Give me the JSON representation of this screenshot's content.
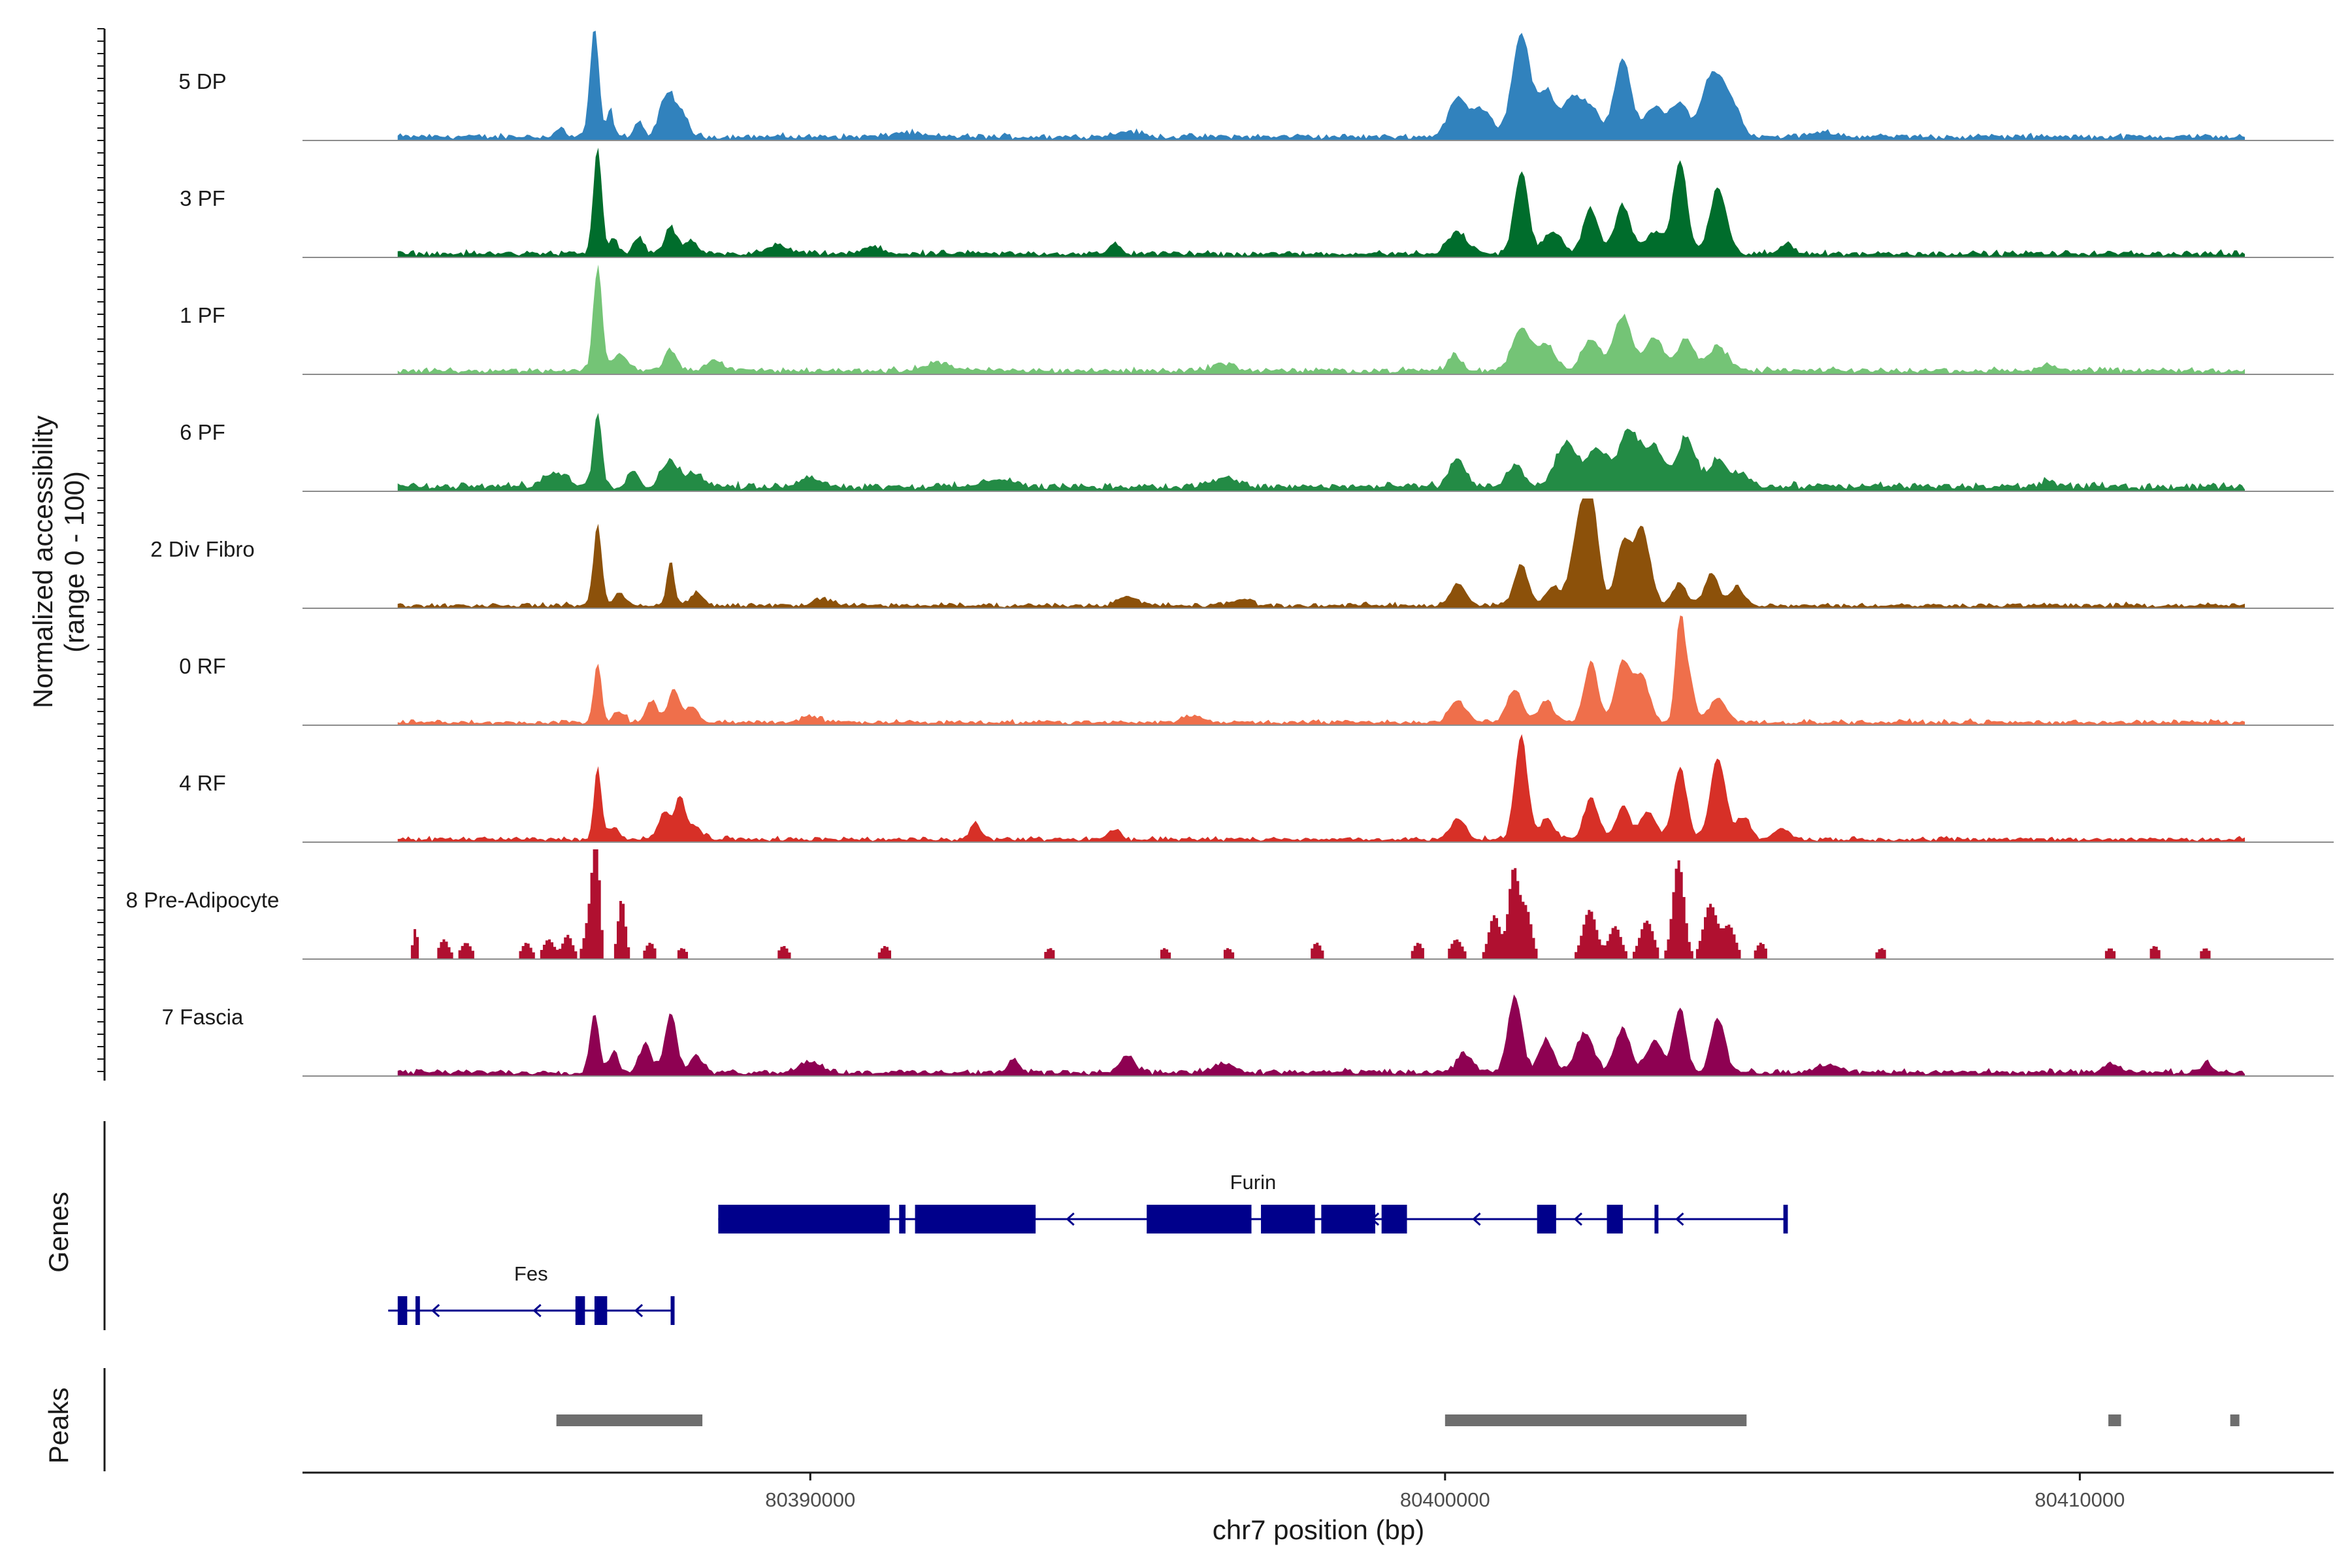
{
  "chart_data": {
    "type": "area",
    "title": "",
    "ylabel_line1": "Normalized accessibility",
    "ylabel_line2": "(range 0 - 100)",
    "xlabel": "chr7 position (bp)",
    "xlim": [
      80382000,
      80414000
    ],
    "xticks": [
      80390000,
      80400000,
      80410000
    ],
    "xtick_labels": [
      "80390000",
      "80400000",
      "80410000"
    ],
    "ylim": [
      0,
      100
    ],
    "series": [
      {
        "name": "5 DP",
        "color": "#3182bd",
        "baseline": 4,
        "noise": 3,
        "peaks": [
          [
            80386000,
            6,
            40
          ],
          [
            80386100,
            8,
            35
          ],
          [
            80386600,
            100,
            70
          ],
          [
            80386850,
            25,
            50
          ],
          [
            80387300,
            15,
            70
          ],
          [
            80387650,
            22,
            70
          ],
          [
            80387800,
            38,
            80
          ],
          [
            80388000,
            20,
            90
          ],
          [
            80391500,
            4,
            200
          ],
          [
            80395000,
            5,
            200
          ],
          [
            80400200,
            35,
            150
          ],
          [
            80400600,
            25,
            150
          ],
          [
            80401200,
            95,
            140
          ],
          [
            80401600,
            40,
            130
          ],
          [
            80402000,
            35,
            150
          ],
          [
            80402300,
            25,
            140
          ],
          [
            80402800,
            70,
            130
          ],
          [
            80403300,
            28,
            150
          ],
          [
            80403700,
            30,
            130
          ],
          [
            80404200,
            55,
            160
          ],
          [
            80404500,
            30,
            150
          ],
          [
            80406000,
            4,
            200
          ]
        ]
      },
      {
        "name": "3 PF",
        "color": "#006d2c",
        "baseline": 4,
        "noise": 3,
        "peaks": [
          [
            80386650,
            100,
            65
          ],
          [
            80386900,
            15,
            60
          ],
          [
            80387300,
            15,
            80
          ],
          [
            80387800,
            25,
            90
          ],
          [
            80388100,
            12,
            90
          ],
          [
            80389500,
            8,
            150
          ],
          [
            80391000,
            6,
            150
          ],
          [
            80394800,
            10,
            80
          ],
          [
            80400200,
            20,
            150
          ],
          [
            80401200,
            75,
            110
          ],
          [
            80401700,
            20,
            140
          ],
          [
            80402300,
            40,
            120
          ],
          [
            80402800,
            45,
            120
          ],
          [
            80403300,
            20,
            140
          ],
          [
            80403700,
            85,
            110
          ],
          [
            80404300,
            60,
            130
          ],
          [
            80405400,
            10,
            100
          ]
        ]
      },
      {
        "name": "1 PF",
        "color": "#74c476",
        "baseline": 4,
        "noise": 3,
        "peaks": [
          [
            80386650,
            95,
            70
          ],
          [
            80387000,
            15,
            120
          ],
          [
            80387800,
            20,
            90
          ],
          [
            80388500,
            8,
            150
          ],
          [
            80392000,
            8,
            200
          ],
          [
            80396500,
            6,
            200
          ],
          [
            80400150,
            15,
            100
          ],
          [
            80401200,
            40,
            140
          ],
          [
            80401600,
            25,
            140
          ],
          [
            80402300,
            30,
            140
          ],
          [
            80402800,
            50,
            140
          ],
          [
            80403300,
            30,
            140
          ],
          [
            80403800,
            30,
            130
          ],
          [
            80404300,
            22,
            150
          ],
          [
            80409500,
            6,
            100
          ]
        ]
      },
      {
        "name": "6 PF",
        "color": "#238b45",
        "baseline": 5,
        "noise": 4,
        "peaks": [
          [
            80386000,
            12,
            200
          ],
          [
            80386650,
            70,
            65
          ],
          [
            80387200,
            15,
            90
          ],
          [
            80387800,
            25,
            130
          ],
          [
            80388200,
            12,
            130
          ],
          [
            80390000,
            8,
            200
          ],
          [
            80393000,
            8,
            200
          ],
          [
            80396500,
            8,
            200
          ],
          [
            80400200,
            25,
            130
          ],
          [
            80401100,
            20,
            120
          ],
          [
            80401900,
            40,
            160
          ],
          [
            80402400,
            35,
            160
          ],
          [
            80402900,
            50,
            160
          ],
          [
            80403300,
            35,
            150
          ],
          [
            80403800,
            45,
            140
          ],
          [
            80404300,
            25,
            150
          ],
          [
            80404700,
            12,
            120
          ],
          [
            80409500,
            6,
            120
          ]
        ]
      },
      {
        "name": "2 Div Fibro",
        "color": "#8c510a",
        "baseline": 3,
        "noise": 3,
        "peaks": [
          [
            80386650,
            75,
            65
          ],
          [
            80387000,
            12,
            80
          ],
          [
            80387800,
            40,
            60
          ],
          [
            80388200,
            12,
            100
          ],
          [
            80390200,
            6,
            150
          ],
          [
            80395000,
            8,
            150
          ],
          [
            80396800,
            6,
            150
          ],
          [
            80400200,
            20,
            120
          ],
          [
            80401200,
            38,
            110
          ],
          [
            80401700,
            18,
            100
          ],
          [
            80402100,
            60,
            130
          ],
          [
            80402300,
            90,
            120
          ],
          [
            80402800,
            55,
            110
          ],
          [
            80403100,
            70,
            130
          ],
          [
            80403700,
            20,
            110
          ],
          [
            80404200,
            30,
            110
          ],
          [
            80404600,
            18,
            100
          ]
        ]
      },
      {
        "name": "0 RF",
        "color": "#ef6f4b",
        "baseline": 3,
        "noise": 3,
        "peaks": [
          [
            80386650,
            55,
            60
          ],
          [
            80387000,
            10,
            80
          ],
          [
            80387500,
            20,
            90
          ],
          [
            80387850,
            30,
            90
          ],
          [
            80388150,
            15,
            90
          ],
          [
            80390000,
            6,
            150
          ],
          [
            80396000,
            6,
            150
          ],
          [
            80400200,
            20,
            130
          ],
          [
            80401100,
            30,
            120
          ],
          [
            80401600,
            20,
            110
          ],
          [
            80402300,
            55,
            110
          ],
          [
            80402800,
            55,
            120
          ],
          [
            80403100,
            42,
            120
          ],
          [
            80403700,
            95,
            70
          ],
          [
            80403850,
            40,
            80
          ],
          [
            80404300,
            22,
            130
          ]
        ]
      },
      {
        "name": "4 RF",
        "color": "#d73027",
        "baseline": 3,
        "noise": 3,
        "peaks": [
          [
            80386650,
            65,
            60
          ],
          [
            80386900,
            12,
            80
          ],
          [
            80387700,
            25,
            90
          ],
          [
            80387950,
            40,
            80
          ],
          [
            80388200,
            12,
            100
          ],
          [
            80392600,
            15,
            80
          ],
          [
            80394800,
            10,
            80
          ],
          [
            80400200,
            18,
            120
          ],
          [
            80401200,
            95,
            100
          ],
          [
            80401600,
            20,
            100
          ],
          [
            80402300,
            38,
            110
          ],
          [
            80402800,
            30,
            110
          ],
          [
            80403200,
            25,
            120
          ],
          [
            80403700,
            65,
            110
          ],
          [
            80404300,
            75,
            120
          ],
          [
            80404700,
            20,
            110
          ],
          [
            80405300,
            10,
            120
          ]
        ]
      },
      {
        "name": "8 Pre-Adipocyte",
        "color": "#b01030",
        "baseline": 0,
        "noise": 0,
        "binned": true,
        "peaks": [
          [
            80383800,
            28,
            40
          ],
          [
            80384250,
            18,
            80
          ],
          [
            80384600,
            15,
            90
          ],
          [
            80385550,
            15,
            80
          ],
          [
            80385900,
            18,
            90
          ],
          [
            80386200,
            22,
            80
          ],
          [
            80386550,
            40,
            80
          ],
          [
            80386650,
            100,
            55
          ],
          [
            80387050,
            55,
            60
          ],
          [
            80387500,
            15,
            80
          ],
          [
            80388000,
            10,
            80
          ],
          [
            80389600,
            12,
            80
          ],
          [
            80391200,
            12,
            80
          ],
          [
            80393800,
            10,
            80
          ],
          [
            80395600,
            10,
            80
          ],
          [
            80396600,
            10,
            80
          ],
          [
            80398000,
            15,
            80
          ],
          [
            80399600,
            15,
            80
          ],
          [
            80400200,
            18,
            100
          ],
          [
            80400800,
            40,
            90
          ],
          [
            80401100,
            80,
            80
          ],
          [
            80401300,
            45,
            90
          ],
          [
            80402300,
            45,
            110
          ],
          [
            80402700,
            30,
            100
          ],
          [
            80403200,
            35,
            110
          ],
          [
            80403700,
            90,
            90
          ],
          [
            80404200,
            50,
            110
          ],
          [
            80404500,
            30,
            100
          ],
          [
            80405000,
            15,
            80
          ],
          [
            80406900,
            10,
            80
          ],
          [
            80410500,
            10,
            80
          ],
          [
            80411200,
            12,
            80
          ],
          [
            80412000,
            10,
            80
          ]
        ]
      },
      {
        "name": "7 Fascia",
        "color": "#8e0152",
        "baseline": 4,
        "noise": 3,
        "peaks": [
          [
            80386600,
            55,
            70
          ],
          [
            80386900,
            18,
            80
          ],
          [
            80387400,
            25,
            100
          ],
          [
            80387800,
            55,
            90
          ],
          [
            80388200,
            15,
            100
          ],
          [
            80390000,
            10,
            180
          ],
          [
            80393200,
            12,
            80
          ],
          [
            80395000,
            15,
            120
          ],
          [
            80396500,
            8,
            150
          ],
          [
            80400300,
            18,
            120
          ],
          [
            80401100,
            70,
            110
          ],
          [
            80401600,
            30,
            110
          ],
          [
            80402200,
            35,
            140
          ],
          [
            80402800,
            40,
            120
          ],
          [
            80403300,
            28,
            130
          ],
          [
            80403700,
            60,
            100
          ],
          [
            80404300,
            50,
            110
          ],
          [
            80406000,
            6,
            200
          ],
          [
            80410500,
            8,
            150
          ],
          [
            80412000,
            8,
            100
          ]
        ]
      }
    ],
    "genes_track_label": "Genes",
    "peaks_track_label": "Peaks",
    "genes": [
      {
        "name": "Fes",
        "strand": "-",
        "start": 80383350,
        "end": 80387850,
        "exons": [
          [
            80383500,
            80383650
          ],
          [
            80383780,
            80383850
          ],
          [
            80386300,
            80386450
          ],
          [
            80386600,
            80386800
          ],
          [
            80387800,
            80387850
          ]
        ]
      },
      {
        "name": "Furin",
        "strand": "-",
        "start": 80388550,
        "end": 80405400,
        "exons": [
          [
            80388550,
            80391250
          ],
          [
            80391400,
            80391500
          ],
          [
            80391650,
            80393550
          ],
          [
            80395300,
            80396950
          ],
          [
            80397100,
            80397950
          ],
          [
            80398050,
            80398900
          ],
          [
            80399000,
            80399400
          ],
          [
            80401450,
            80401750
          ],
          [
            80402550,
            80402800
          ],
          [
            80403300,
            80403330
          ],
          [
            80405330,
            80405400
          ]
        ]
      }
    ],
    "peaks": [
      [
        80386000,
        80388300
      ],
      [
        80400000,
        80404750
      ],
      [
        80410450,
        80410650
      ],
      [
        80412370,
        80412490
      ]
    ]
  }
}
